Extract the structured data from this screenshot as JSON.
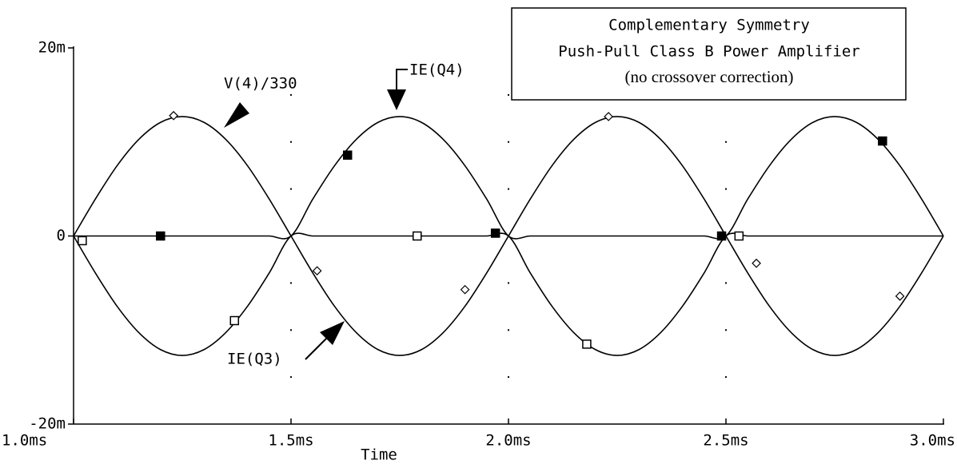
{
  "chart_data": {
    "type": "line",
    "title": [
      "Complementary Symmetry",
      "Push-Pull Class B Power Amplifier",
      "(no crossover correction)"
    ],
    "xlabel": "Time",
    "annotations": [
      "V(4)/330",
      "IE(Q4)",
      "IE(Q3)"
    ],
    "xlim": [
      1.0,
      3.0
    ],
    "xticks": [
      {
        "value": 1.0,
        "label": "1.0ms"
      },
      {
        "value": 1.5,
        "label": "1.5ms"
      },
      {
        "value": 2.0,
        "label": "2.0ms"
      },
      {
        "value": 2.5,
        "label": "2.5ms"
      },
      {
        "value": 3.0,
        "label": "3.0ms"
      }
    ],
    "ylim": [
      -20,
      20
    ],
    "yticks": [
      {
        "value": -20,
        "label": "-20m"
      },
      0,
      {
        "value": 20,
        "label": "20m"
      }
    ],
    "grid": "dotted",
    "x": [
      1.0,
      1.05,
      1.1,
      1.15,
      1.2,
      1.25,
      1.3,
      1.35,
      1.4,
      1.45,
      1.5,
      1.55,
      1.6,
      1.65,
      1.7,
      1.75,
      1.8,
      1.85,
      1.9,
      1.95,
      2.0,
      2.05,
      2.1,
      2.15,
      2.2,
      2.25,
      2.3,
      2.35,
      2.4,
      2.45,
      2.5,
      2.55,
      2.6,
      2.65,
      2.7,
      2.75,
      2.8,
      2.85,
      2.9,
      2.95,
      3.0
    ],
    "series": [
      {
        "name": "V(4)/330",
        "color": "#000000",
        "marker": "diamond",
        "values": [
          0,
          3.92,
          7.47,
          10.27,
          12.08,
          12.7,
          12.08,
          10.27,
          7.47,
          3.92,
          0,
          -3.92,
          -7.47,
          -10.27,
          -12.08,
          -12.7,
          -12.08,
          -10.27,
          -7.47,
          -3.92,
          0,
          3.92,
          7.47,
          10.27,
          12.08,
          12.7,
          12.08,
          10.27,
          7.47,
          3.92,
          0,
          -3.92,
          -7.47,
          -10.27,
          -12.08,
          -12.7,
          -12.08,
          -10.27,
          -7.47,
          -3.92,
          0
        ],
        "markers": {
          "x": [
            1.23,
            1.56,
            1.9,
            2.23,
            2.57,
            2.9
          ],
          "values": [
            12.8,
            -3.7,
            -5.7,
            12.7,
            -2.9,
            -6.4
          ]
        }
      },
      {
        "name": "IE(Q4)",
        "color": "#000000",
        "marker": "filled-square",
        "values": [
          0,
          0,
          0,
          0,
          0,
          0,
          0,
          0,
          0,
          0,
          0,
          3.92,
          7.47,
          10.27,
          12.08,
          12.7,
          12.08,
          10.27,
          7.47,
          3.92,
          0,
          0,
          0,
          0,
          0,
          0,
          0,
          0,
          0,
          0,
          0,
          3.92,
          7.47,
          10.27,
          12.08,
          12.7,
          12.08,
          10.27,
          7.47,
          3.92,
          0
        ],
        "markers": {
          "x": [
            1.2,
            1.63,
            1.97,
            2.49,
            2.86
          ],
          "values": [
            0,
            8.6,
            0.3,
            0,
            10.1
          ]
        }
      },
      {
        "name": "IE(Q3)",
        "color": "#000000",
        "marker": "square",
        "values": [
          0,
          -3.92,
          -7.47,
          -10.27,
          -12.08,
          -12.7,
          -12.08,
          -10.27,
          -7.47,
          -3.92,
          0,
          0,
          0,
          0,
          0,
          0,
          0,
          0,
          0,
          0,
          0,
          -3.92,
          -7.47,
          -10.27,
          -12.08,
          -12.7,
          -12.08,
          -10.27,
          -7.47,
          -3.92,
          0,
          0,
          0,
          0,
          0,
          0,
          0,
          0,
          0,
          0,
          0
        ],
        "markers": {
          "x": [
            1.02,
            1.37,
            1.79,
            2.18,
            2.53
          ],
          "values": [
            -0.5,
            -9.0,
            0,
            -11.5,
            0
          ]
        }
      }
    ]
  }
}
